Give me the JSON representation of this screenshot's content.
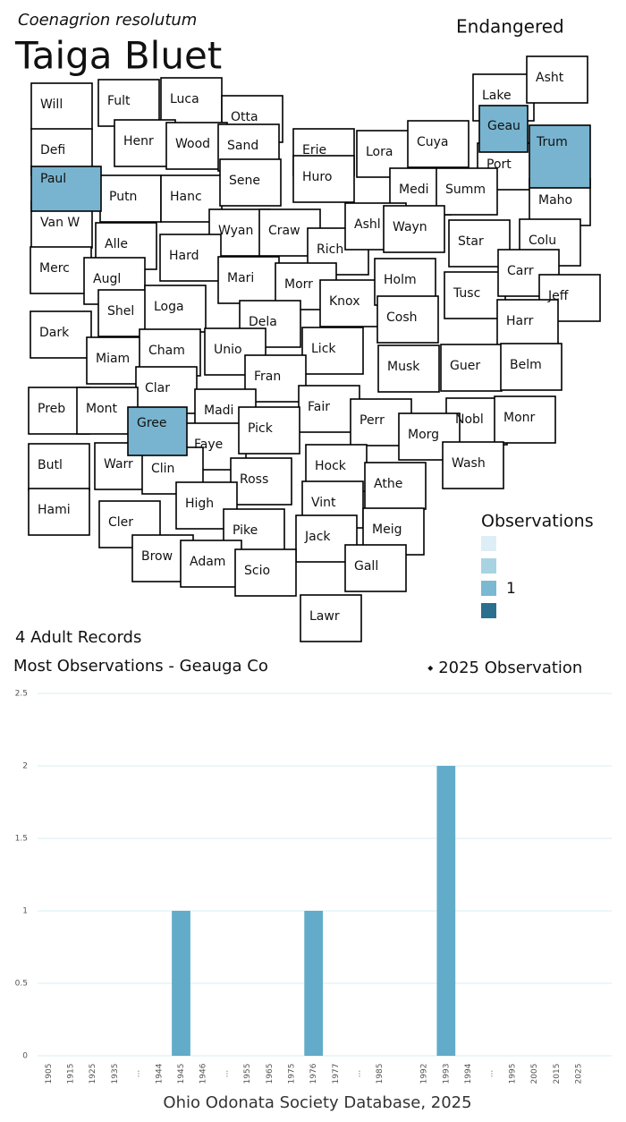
{
  "header": {
    "subtitle": "Coenagrion resolutum",
    "title": "Taiga Bluet",
    "status": "Endangered",
    "records": "4 Adult Records",
    "most": "Most Observations - Geauga Co",
    "marker_note": "⬩ 2025  Observation",
    "footer": "Ohio Odonata Society Database, 2025"
  },
  "map": {
    "counties": [
      {
        "label": "Will"
      },
      {
        "label": "Fult"
      },
      {
        "label": "Luca"
      },
      {
        "label": "Otta"
      },
      {
        "label": "Lake"
      },
      {
        "label": "Asht"
      },
      {
        "label": "Geau",
        "color": "#78b4cf"
      },
      {
        "label": "Trum",
        "color": "#78b4cf"
      },
      {
        "label": "Defi"
      },
      {
        "label": "Henr"
      },
      {
        "label": "Wood"
      },
      {
        "label": "Sand"
      },
      {
        "label": "Erie"
      },
      {
        "label": "Lora"
      },
      {
        "label": "Cuya"
      },
      {
        "label": "Port"
      },
      {
        "label": "Paul",
        "color": "#78b4cf"
      },
      {
        "label": "Putn"
      },
      {
        "label": "Hanc"
      },
      {
        "label": "Sene"
      },
      {
        "label": "Huro"
      },
      {
        "label": "Medi"
      },
      {
        "label": "Summ"
      },
      {
        "label": "Maho"
      },
      {
        "label": "Van W"
      },
      {
        "label": "Alle"
      },
      {
        "label": "Wyan"
      },
      {
        "label": "Craw"
      },
      {
        "label": "Rich"
      },
      {
        "label": "Ashl"
      },
      {
        "label": "Wayn"
      },
      {
        "label": "Star"
      },
      {
        "label": "Colu"
      },
      {
        "label": "Merc"
      },
      {
        "label": "Augl"
      },
      {
        "label": "Hard"
      },
      {
        "label": "Mari"
      },
      {
        "label": "Morr"
      },
      {
        "label": "Knox"
      },
      {
        "label": "Holm"
      },
      {
        "label": "Tusc"
      },
      {
        "label": "Carr"
      },
      {
        "label": "Jeff"
      },
      {
        "label": "Shel"
      },
      {
        "label": "Loga"
      },
      {
        "label": "Dela"
      },
      {
        "label": "Cosh"
      },
      {
        "label": "Harr"
      },
      {
        "label": "Dark"
      },
      {
        "label": "Miam"
      },
      {
        "label": "Cham"
      },
      {
        "label": "Unio"
      },
      {
        "label": "Lick"
      },
      {
        "label": "Musk"
      },
      {
        "label": "Guer"
      },
      {
        "label": "Belm"
      },
      {
        "label": "Fran"
      },
      {
        "label": "Clar"
      },
      {
        "label": "Madi"
      },
      {
        "label": "Fair"
      },
      {
        "label": "Perr"
      },
      {
        "label": "Nobl"
      },
      {
        "label": "Monr"
      },
      {
        "label": "Preb"
      },
      {
        "label": "Mont"
      },
      {
        "label": "Gree",
        "color": "#78b4cf"
      },
      {
        "label": "Faye"
      },
      {
        "label": "Pick"
      },
      {
        "label": "Morg"
      },
      {
        "label": "Butl"
      },
      {
        "label": "Warr"
      },
      {
        "label": "Clin"
      },
      {
        "label": "Hock"
      },
      {
        "label": "Wash"
      },
      {
        "label": "Ross"
      },
      {
        "label": "Athe"
      },
      {
        "label": "Hami"
      },
      {
        "label": "Cler"
      },
      {
        "label": "High"
      },
      {
        "label": "Vint"
      },
      {
        "label": "Meig"
      },
      {
        "label": "Pike"
      },
      {
        "label": "Jack"
      },
      {
        "label": "Brow"
      },
      {
        "label": "Adam"
      },
      {
        "label": "Scio"
      },
      {
        "label": "Gall"
      },
      {
        "label": "Lawr"
      }
    ],
    "legend": {
      "title": "Observations",
      "items": [
        {
          "color": "#deeef6"
        },
        {
          "color": "#a8d3e3"
        },
        {
          "color": "#7bb9d2",
          "label": "1"
        },
        {
          "color": "#2b6f8e"
        }
      ]
    }
  },
  "chart_data": {
    "type": "bar",
    "color": "#62abc9",
    "categories": [
      "1905",
      "1915",
      "1925",
      "1935",
      "...",
      "1944",
      "1945",
      "1946",
      "...",
      "1955",
      "1965",
      "1975",
      "1976",
      "1977",
      "...",
      "1985",
      null,
      "1992",
      "1993",
      "1994",
      "...",
      "1995",
      "2005",
      "2015",
      "2025",
      null
    ],
    "values": [
      0,
      0,
      0,
      0,
      0,
      0,
      1,
      0,
      0,
      0,
      0,
      0,
      1,
      0,
      0,
      0,
      0,
      0,
      2,
      0,
      0,
      0,
      0,
      0,
      0,
      0
    ],
    "ylim": [
      0,
      2.5
    ],
    "yticks": [
      0,
      0.5,
      1,
      1.5,
      2,
      2.5
    ],
    "grid": true
  }
}
